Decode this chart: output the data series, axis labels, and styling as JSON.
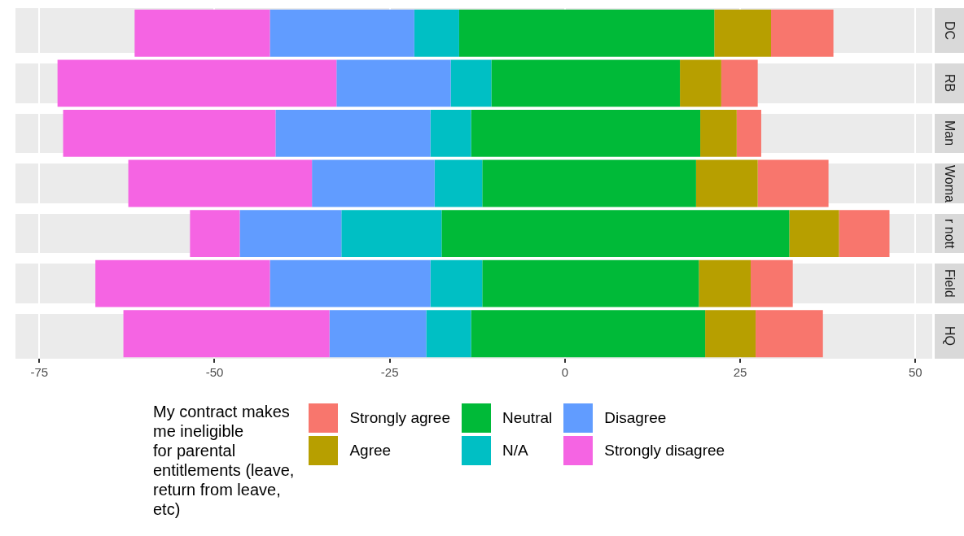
{
  "chart_data": {
    "type": "bar",
    "orientation": "horizontal",
    "categories": [
      "DC",
      "RB",
      "Man",
      "Woma",
      "r nott",
      "Field",
      "HQ"
    ],
    "series": [
      {
        "name": "Strongly disagree",
        "color": "#f564e3",
        "base": [
          -61.4,
          -72.4,
          -71.6,
          -62.3,
          -53.5,
          -67.0,
          -63.0
        ],
        "values": [
          19.3,
          39.8,
          30.3,
          26.2,
          7.1,
          24.9,
          29.4
        ]
      },
      {
        "name": "Disagree",
        "color": "#619cff",
        "base": [
          -42.1,
          -32.6,
          -41.3,
          -36.1,
          -46.4,
          -42.1,
          -33.6
        ],
        "values": [
          20.6,
          16.3,
          22.1,
          17.5,
          14.5,
          22.9,
          13.8
        ]
      },
      {
        "name": "N/A",
        "color": "#00bfc4",
        "base": [
          -21.5,
          -16.3,
          -19.2,
          -18.6,
          -31.9,
          -19.2,
          -19.8
        ],
        "values": [
          6.4,
          5.8,
          5.8,
          6.8,
          14.3,
          7.4,
          6.4
        ]
      },
      {
        "name": "Neutral",
        "color": "#00ba38",
        "base": [
          -15.1,
          -10.5,
          -13.4,
          -11.8,
          -17.6,
          -11.8,
          -13.4
        ],
        "values": [
          36.4,
          26.9,
          32.7,
          30.5,
          49.6,
          30.9,
          33.4
        ]
      },
      {
        "name": "Agree",
        "color": "#b79f00",
        "base": [
          21.3,
          16.4,
          19.3,
          18.7,
          32.0,
          19.1,
          20.0
        ],
        "values": [
          8.1,
          5.9,
          5.2,
          8.8,
          7.1,
          7.4,
          7.2
        ]
      },
      {
        "name": "Strongly agree",
        "color": "#f8766d",
        "base": [
          29.4,
          22.3,
          24.5,
          27.5,
          39.1,
          26.5,
          27.2
        ],
        "values": [
          8.9,
          5.2,
          3.5,
          10.1,
          7.2,
          6.0,
          9.6
        ]
      }
    ],
    "xlim": [
      -78.4,
      52.4
    ],
    "xticks": [
      -75,
      -50,
      -25,
      0,
      25,
      50
    ],
    "grid": "x",
    "legend": "bottom",
    "legend_title": "My contract makes\nme ineligible\nfor parental\nentitlements (leave,\nreturn from leave,\netc)"
  }
}
